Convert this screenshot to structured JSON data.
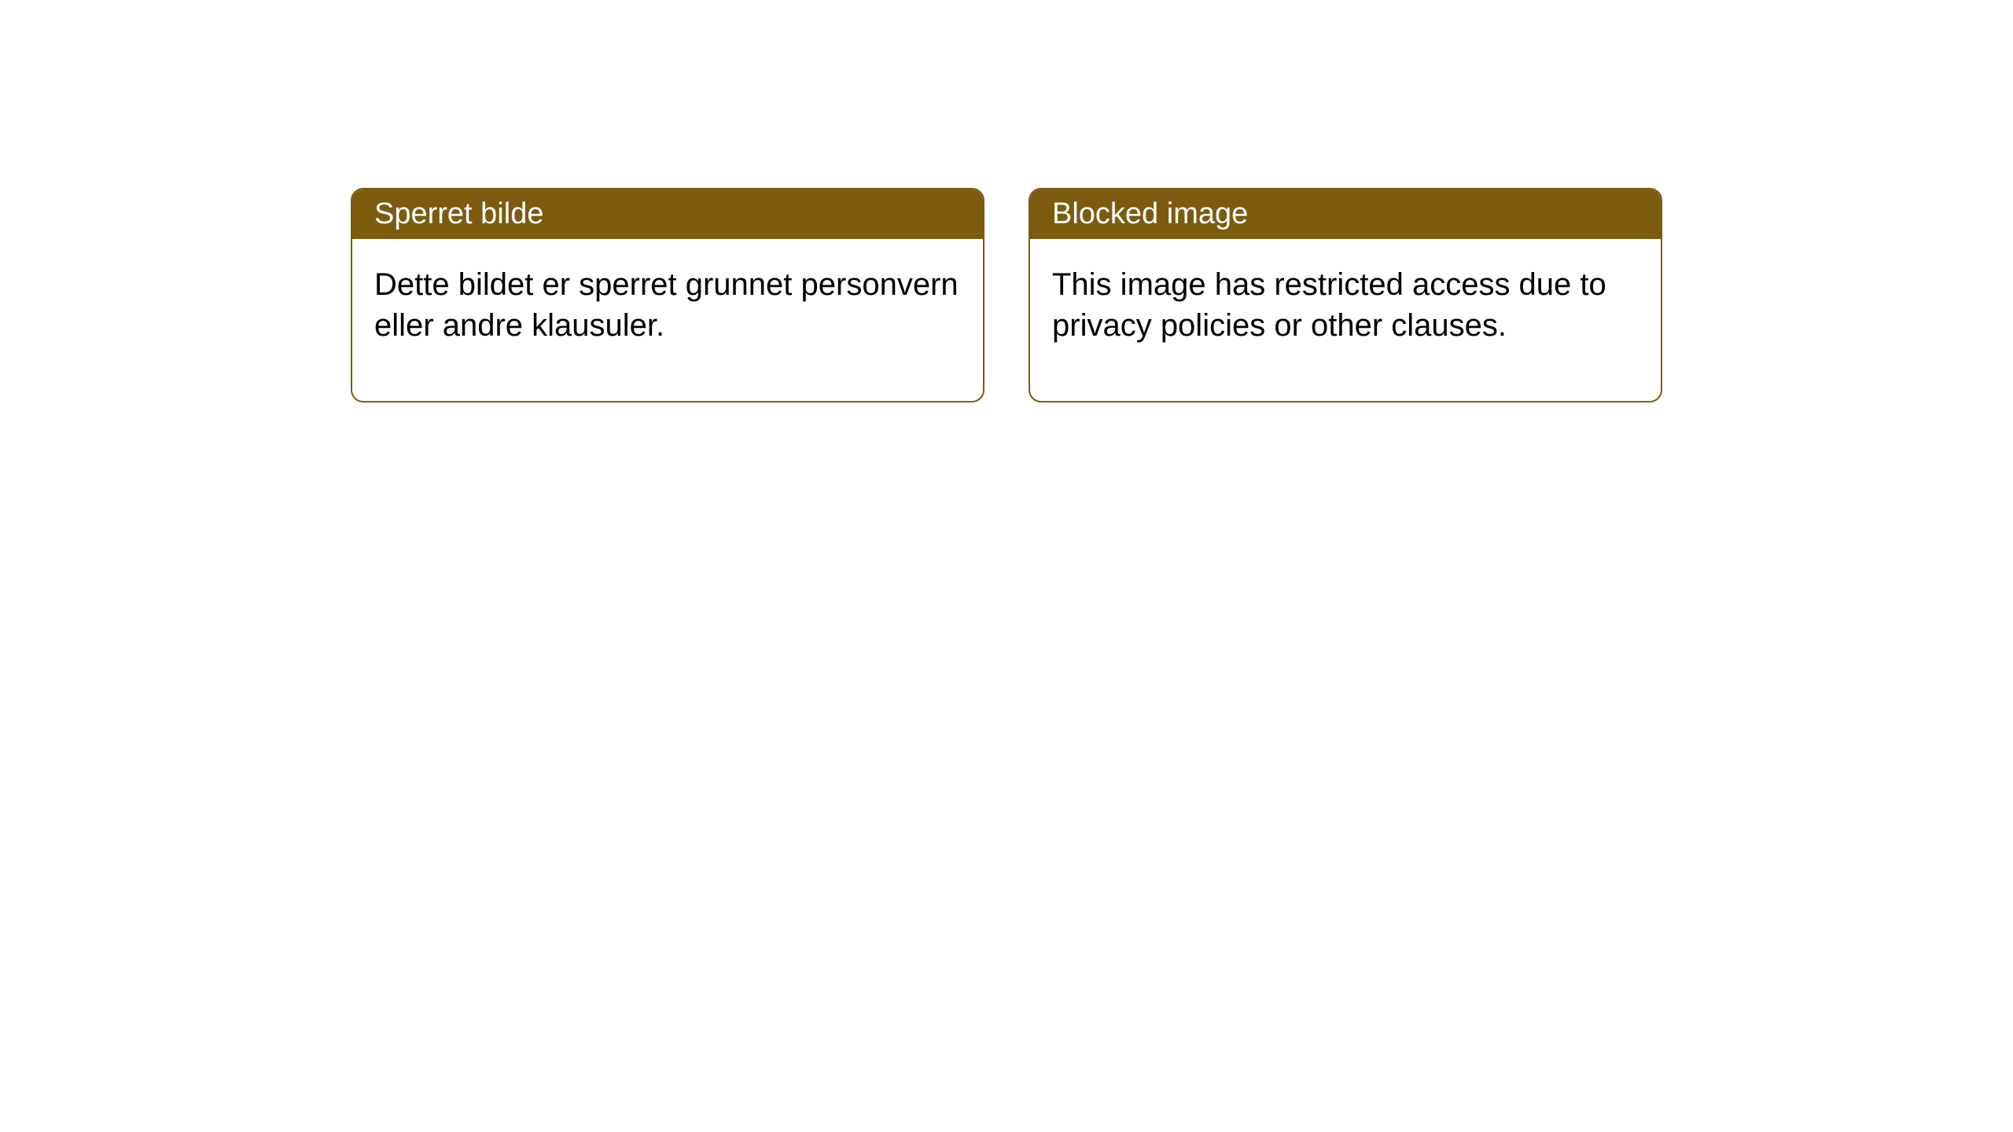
{
  "notices": {
    "left": {
      "title": "Sperret bilde",
      "body": "Dette bildet er sperret grunnet personvern eller andre klausuler."
    },
    "right": {
      "title": "Blocked image",
      "body": "This image has restricted access due to privacy policies or other clauses."
    }
  },
  "style": {
    "header_bg_color": "#7b5c0f",
    "header_text_color": "#ffffff",
    "border_color": "#7b5c0f",
    "body_bg_color": "#ffffff",
    "body_text_color": "#000000",
    "border_radius": 16,
    "title_fontsize": 38,
    "body_fontsize": 40
  }
}
